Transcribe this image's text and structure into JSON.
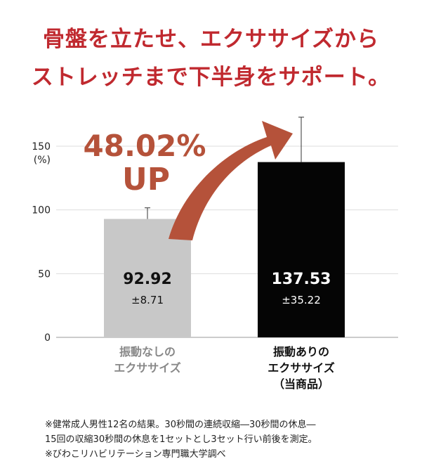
{
  "headline": {
    "line1": "骨盤を立たせ、エクササイズから",
    "line2": "ストレッチまで下半身をサポート。"
  },
  "badge": {
    "percent": "48.02%",
    "up": "UP"
  },
  "colors": {
    "headline": "#c0292f",
    "badge": "#b5523a",
    "bar_without": "#c8c8c8",
    "bar_with": "#050505"
  },
  "chart_data": {
    "type": "bar",
    "ylabel": "(%)",
    "ylim": [
      0,
      150
    ],
    "yticks": [
      "0",
      "50",
      "100",
      "150"
    ],
    "grid": true,
    "categories": [
      {
        "lines": [
          "振動なしの",
          "エクササイズ"
        ],
        "bold": false
      },
      {
        "lines": [
          "振動ありの",
          "エクササイズ",
          "（当商品）"
        ],
        "bold": true
      }
    ],
    "values": [
      92.92,
      137.53
    ],
    "errors": [
      8.71,
      35.22
    ],
    "value_labels": [
      "92.92",
      "137.53"
    ],
    "error_labels": [
      "±8.71",
      "±35.22"
    ]
  },
  "notes": [
    "※健常成人男性12名の結果。30秒間の連続収縮―30秒間の休息―",
    "15回の収縮30秒間の休息を1セットとし3セット行い前後を測定。",
    "※びわこリハビリテーション専門職大学調べ"
  ]
}
